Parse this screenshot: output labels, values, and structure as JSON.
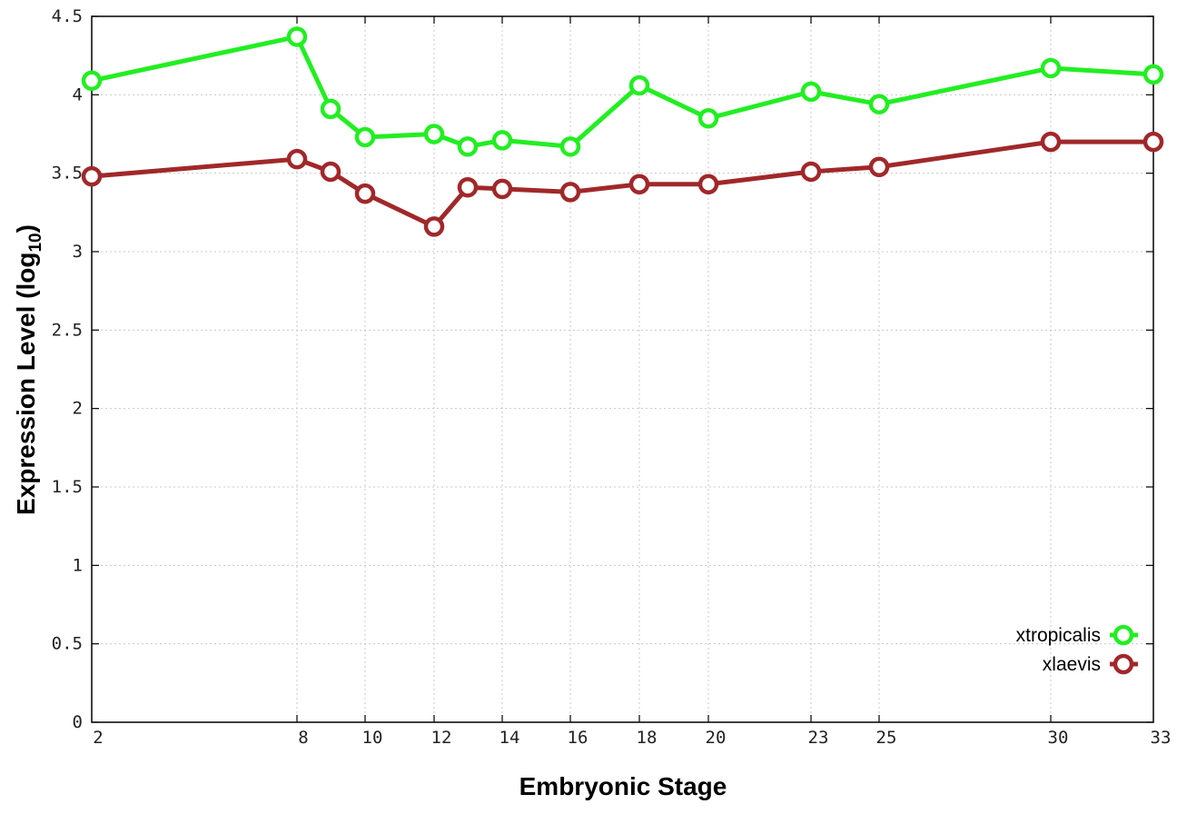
{
  "chart_data": {
    "type": "line",
    "xlabel": "Embryonic Stage",
    "ylabel_main": "Expression Level (log",
    "ylabel_sub": "10",
    "ylabel_close": ")",
    "x_ticks": [
      "2",
      "8",
      "10",
      "12",
      "14",
      "16",
      "18",
      "20",
      "23",
      "25",
      "30",
      "33"
    ],
    "y_ticks": [
      "0",
      "0.5",
      "1",
      "1.5",
      "2",
      "2.5",
      "3",
      "3.5",
      "4",
      "4.5"
    ],
    "ylim": [
      0,
      4.5
    ],
    "grid": true,
    "legend_position": "bottom-right",
    "x_scale": "categorical (non-linear spacing)",
    "x": [
      2,
      8,
      9,
      10,
      12,
      13,
      14,
      16,
      18,
      20,
      23,
      25,
      30,
      33
    ],
    "series": [
      {
        "name": "xtropicalis",
        "color": "#22ee22",
        "values": [
          4.09,
          4.37,
          3.91,
          3.73,
          3.75,
          3.67,
          3.71,
          3.67,
          4.06,
          3.85,
          4.02,
          3.94,
          4.17,
          4.13
        ]
      },
      {
        "name": "xlaevis",
        "color": "#a0282a",
        "values": [
          3.48,
          3.59,
          3.51,
          3.37,
          3.16,
          3.41,
          3.4,
          3.38,
          3.43,
          3.43,
          3.51,
          3.54,
          3.7,
          3.7
        ]
      }
    ]
  }
}
